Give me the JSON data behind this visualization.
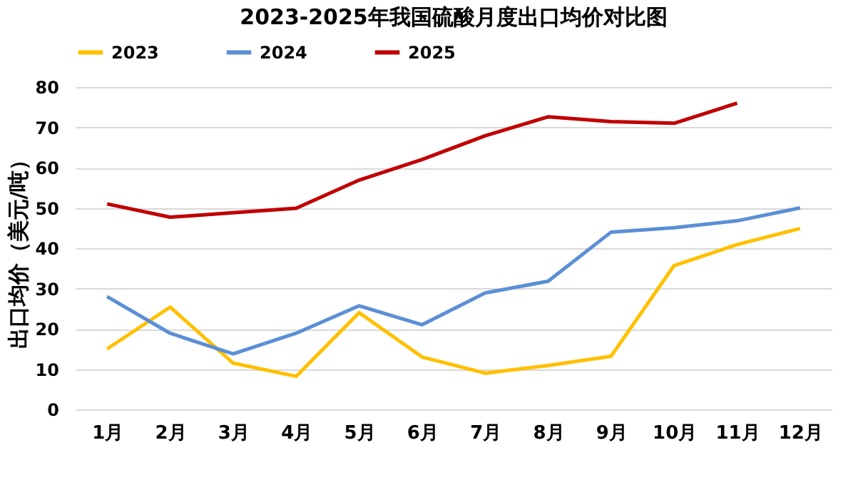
{
  "chart_data": {
    "type": "line",
    "title": "2023-2025年我国硫酸月度出口均价对比图",
    "ylabel": "出口均价（美元/吨）",
    "categories": [
      "1月",
      "2月",
      "3月",
      "4月",
      "5月",
      "6月",
      "7月",
      "8月",
      "9月",
      "10月",
      "11月",
      "12月"
    ],
    "series": [
      {
        "name": "2023",
        "color": "#ffc000",
        "values": [
          15,
          25.4,
          11.5,
          8.2,
          24,
          13,
          9,
          10.9,
          13.2,
          35.7,
          40.9,
          44.9
        ]
      },
      {
        "name": "2024",
        "color": "#5b8fd6",
        "values": [
          28,
          18.9,
          13.8,
          18.9,
          25.7,
          21,
          28.9,
          31.8,
          44,
          45.1,
          46.8,
          50
        ]
      },
      {
        "name": "2025",
        "color": "#c00000",
        "values": [
          51,
          47.7,
          48.8,
          49.9,
          56.9,
          62,
          67.9,
          72.6,
          71.4,
          71,
          76,
          null
        ]
      }
    ],
    "ylim": [
      0,
      80
    ],
    "yticks": [
      0,
      10,
      20,
      30,
      40,
      50,
      60,
      70,
      80
    ],
    "grid": "y",
    "legend": "top",
    "marker": "none",
    "line_style": "solid"
  }
}
